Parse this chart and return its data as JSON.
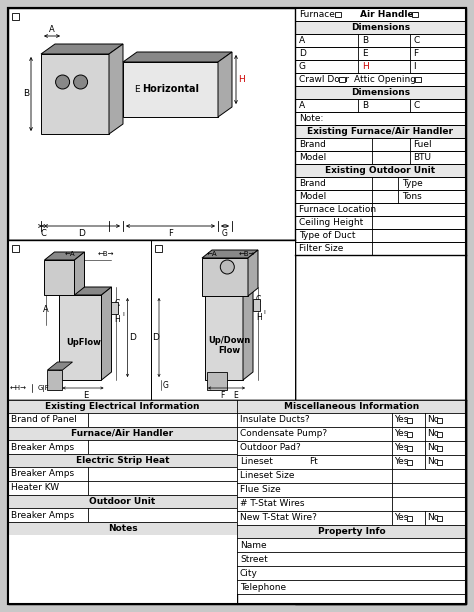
{
  "bg_color": "#c8c8c8",
  "sheet_bg": "#ffffff",
  "right_panel": {
    "furnace_label": "Furnace",
    "air_handler_label": "Air Handler",
    "dimensions_label": "Dimensions",
    "crawl_door": "Crawl Door",
    "attic_opening": "Attic Opening",
    "dims2_label": "Dimensions",
    "note_label": "Note:",
    "existing_furnace_header": "Existing Furnace/Air Handler",
    "existing_outdoor_header": "Existing Outdoor Unit",
    "furnace_location": "Furnace Location",
    "ceiling_height": "Ceiling Height",
    "type_of_duct": "Type of Duct",
    "filter_size": "Filter Size"
  },
  "bottom_left": {
    "elec_header": "Existing Electrical Information",
    "brand_panel": "Brand of Panel",
    "furnace_ah_header": "Furnace/Air Handler",
    "breaker_amps1": "Breaker Amps",
    "electric_strip_header": "Electric Strip Heat",
    "breaker_amps2": "Breaker Amps",
    "heater_kw": "Heater KW",
    "outdoor_unit_header": "Outdoor Unit",
    "breaker_amps3": "Breaker Amps",
    "notes_header": "Notes"
  },
  "bottom_right": {
    "misc_header": "Miscellaneous Information",
    "insulate_ducts": "Insulate Ducts?",
    "condensate_pump": "Condensate Pump?",
    "outdoor_pad": "Outdoor Pad?",
    "lineset": "Lineset",
    "lineset_ft": "Ft",
    "lineset_size": "Lineset Size",
    "flue_size": "Flue Size",
    "t_stat_wires": "# T-Stat Wires",
    "new_t_stat": "New T-Stat Wire?",
    "yes_label": "Yes",
    "no_label": "No",
    "property_header": "Property Info",
    "prop_rows": [
      "Name",
      "Street",
      "City",
      "Telephone"
    ]
  },
  "h_label_color": "#cc0000",
  "diagram_labels": {
    "horizontal": "Horizontal",
    "upflow": "UpFlow",
    "updown": "Up/Down\nFlow"
  }
}
